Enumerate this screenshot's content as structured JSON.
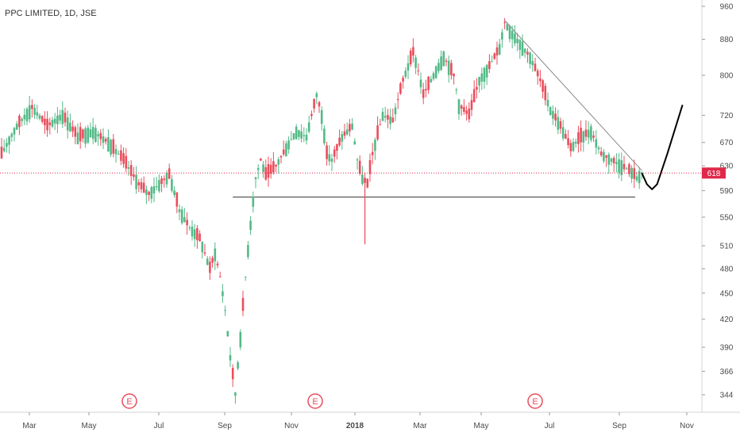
{
  "chart_data": {
    "type": "candlestick",
    "title": "PPC LIMITED, 1D, JSE",
    "xlabel": "",
    "ylabel": "",
    "scale": "log",
    "ylim": [
      330,
      975
    ],
    "x_tick_labels": [
      "Mar",
      "May",
      "Jul",
      "Sep",
      "Nov",
      "2018",
      "Mar",
      "May",
      "Jul",
      "Sep",
      "Nov"
    ],
    "y_tick_labels": [
      960,
      880,
      800,
      720,
      670,
      630,
      590,
      550,
      510,
      480,
      450,
      420,
      390,
      366,
      344
    ],
    "last_price": 618,
    "last_price_label": "618",
    "earnings_markers": [
      "E",
      "E",
      "E"
    ],
    "colors": {
      "up": "#53b987",
      "down": "#eb4d5c",
      "price_line": "#e0294a",
      "trendline": "#8a8a8a",
      "projection": "#000000"
    },
    "price_path": [
      [
        0,
        650
      ],
      [
        3,
        700
      ],
      [
        6,
        735
      ],
      [
        9,
        700
      ],
      [
        12,
        720
      ],
      [
        15,
        680
      ],
      [
        18,
        690
      ],
      [
        21,
        670
      ],
      [
        24,
        640
      ],
      [
        27,
        600
      ],
      [
        29,
        585
      ],
      [
        31,
        600
      ],
      [
        33,
        615
      ],
      [
        35,
        560
      ],
      [
        37,
        535
      ],
      [
        39,
        520
      ],
      [
        40,
        500
      ],
      [
        41,
        480
      ],
      [
        42,
        500
      ],
      [
        43,
        470
      ],
      [
        44,
        430
      ],
      [
        45,
        380
      ],
      [
        46,
        345
      ],
      [
        47,
        400
      ],
      [
        48,
        470
      ],
      [
        49,
        540
      ],
      [
        50,
        610
      ],
      [
        51,
        640
      ],
      [
        52,
        615
      ],
      [
        54,
        630
      ],
      [
        56,
        660
      ],
      [
        58,
        690
      ],
      [
        60,
        680
      ],
      [
        62,
        760
      ],
      [
        63,
        720
      ],
      [
        64,
        650
      ],
      [
        65,
        640
      ],
      [
        67,
        680
      ],
      [
        69,
        700
      ],
      [
        70,
        640
      ],
      [
        71,
        610
      ],
      [
        72,
        600
      ],
      [
        73,
        650
      ],
      [
        75,
        720
      ],
      [
        77,
        710
      ],
      [
        79,
        790
      ],
      [
        81,
        850
      ],
      [
        82,
        810
      ],
      [
        83,
        760
      ],
      [
        85,
        800
      ],
      [
        87,
        840
      ],
      [
        89,
        800
      ],
      [
        90,
        740
      ],
      [
        92,
        720
      ],
      [
        94,
        790
      ],
      [
        96,
        820
      ],
      [
        98,
        860
      ],
      [
        99,
        920
      ],
      [
        100,
        900
      ],
      [
        102,
        870
      ],
      [
        104,
        840
      ],
      [
        106,
        790
      ],
      [
        108,
        730
      ],
      [
        110,
        700
      ],
      [
        112,
        660
      ],
      [
        114,
        680
      ],
      [
        116,
        690
      ],
      [
        118,
        650
      ],
      [
        120,
        640
      ],
      [
        122,
        630
      ],
      [
        124,
        620
      ],
      [
        125,
        610
      ],
      [
        126,
        618
      ]
    ],
    "support_level": 580,
    "trendline": [
      [
        99,
        925
      ],
      [
        126,
        622
      ]
    ],
    "projection": [
      [
        126,
        618
      ],
      [
        127,
        600
      ],
      [
        128,
        592
      ],
      [
        129,
        600
      ],
      [
        131,
        650
      ],
      [
        134,
        740
      ]
    ]
  }
}
